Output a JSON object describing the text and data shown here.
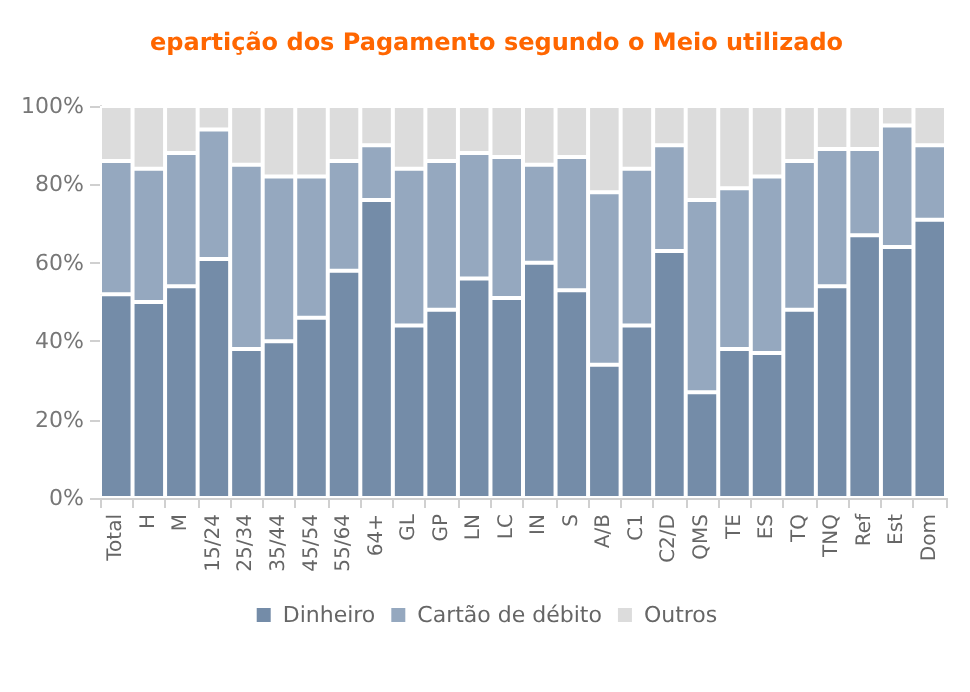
{
  "chart_data": {
    "type": "bar",
    "title": "epartição dos Pagamento segundo o Meio utilizado",
    "stacked": true,
    "categories": [
      "Total",
      "H",
      "M",
      "15/24",
      "25/34",
      "35/44",
      "45/54",
      "55/64",
      "64+",
      "GL",
      "GP",
      "LN",
      "LC",
      "IN",
      "S",
      "A/B",
      "C1",
      "C2/D",
      "QMS",
      "TE",
      "ES",
      "TQ",
      "TNQ",
      "Ref",
      "Est",
      "Dom"
    ],
    "series": [
      {
        "name": "Dinheiro",
        "color": "#748ca8",
        "values": [
          52,
          50,
          54,
          61,
          38,
          40,
          46,
          58,
          76,
          44,
          48,
          56,
          51,
          60,
          53,
          34,
          44,
          63,
          27,
          38,
          37,
          48,
          54,
          67,
          64,
          71
        ]
      },
      {
        "name": "Cartão de débito",
        "color": "#95a8bf",
        "values": [
          34,
          34,
          34,
          33,
          47,
          42,
          36,
          28,
          14,
          40,
          38,
          32,
          36,
          25,
          34,
          44,
          40,
          27,
          49,
          41,
          45,
          38,
          35,
          22,
          31,
          19
        ]
      },
      {
        "name": "Outros",
        "color": "#dcdcdc",
        "values": [
          14,
          16,
          12,
          6,
          15,
          18,
          18,
          14,
          10,
          16,
          14,
          12,
          13,
          15,
          13,
          22,
          16,
          10,
          24,
          21,
          18,
          14,
          11,
          11,
          5,
          10
        ]
      }
    ],
    "ylim": [
      0,
      100
    ],
    "yticks": [
      {
        "value": 0,
        "label": "0%"
      },
      {
        "value": 20,
        "label": "20%"
      },
      {
        "value": 40,
        "label": "40%"
      },
      {
        "value": 60,
        "label": "60%"
      },
      {
        "value": 80,
        "label": "80%"
      },
      {
        "value": 100,
        "label": "100%"
      }
    ],
    "grid": false,
    "legend": "bottom"
  }
}
